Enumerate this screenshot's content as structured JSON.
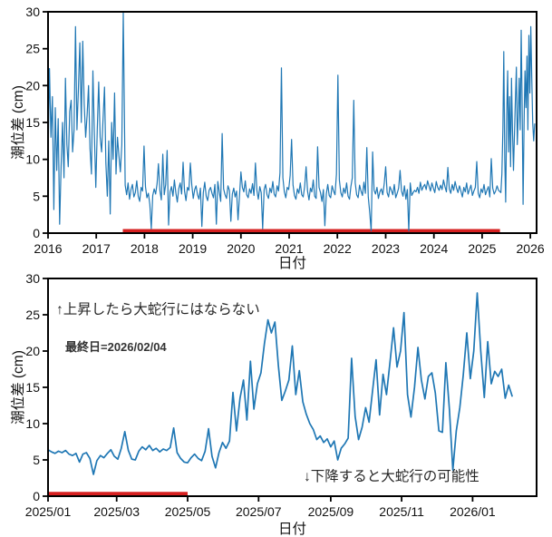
{
  "figure_title": "",
  "colors": {
    "line": "#1f77b4",
    "highlight_bar": "#d62020",
    "axis": "#000000",
    "tick_text": "#111111",
    "annotation_text": "#262626",
    "lastday_text": "#333333",
    "background": "#ffffff"
  },
  "chart_data": [
    {
      "type": "line",
      "title": "",
      "xlabel": "日付",
      "ylabel": "潮位差 (cm)",
      "x_encoding": "decimal year",
      "xlim": [
        2016.0,
        2026.13
      ],
      "ylim": [
        0,
        30
      ],
      "grid": false,
      "legend": "none",
      "frame_color": "#000000",
      "line_color": "#1f77b4",
      "line_width": 1.2,
      "xticks": {
        "values": [
          2016,
          2017,
          2018,
          2019,
          2020,
          2021,
          2022,
          2023,
          2024,
          2025,
          2026
        ],
        "labels": [
          "2016",
          "2017",
          "2018",
          "2019",
          "2020",
          "2021",
          "2022",
          "2023",
          "2024",
          "2025",
          "2026"
        ]
      },
      "yticks": {
        "values": [
          0,
          5,
          10,
          15,
          20,
          25,
          30
        ],
        "labels": [
          "0",
          "5",
          "10",
          "15",
          "20",
          "25",
          "30"
        ]
      },
      "highlight_bar": {
        "x0": 2017.55,
        "x1": 2025.37,
        "y": 0.28,
        "thickness": 4.5
      },
      "series": {
        "name": "潮位差",
        "segments": [
          {
            "x_start": 2016.0,
            "x_step": 0.03,
            "values": [
              10.3,
              22.3,
              13.0,
              18.5,
              3.2,
              17.0,
              8.5,
              15.5,
              1.2,
              9.0,
              15.0,
              7.5,
              21.0,
              12.0,
              9.0,
              16.5,
              18.0,
              11.0,
              14.0,
              28.0,
              14.0,
              19.5,
              25.8,
              15.0,
              26.0,
              17.5,
              13.0,
              16.0,
              20.0,
              11.5,
              8.0,
              22.0,
              13.5,
              6.2,
              14.0,
              20.5,
              13.0,
              11.0,
              15.5,
              19.8,
              9.5,
              5.0,
              12.5,
              2.6,
              15.0,
              10.0,
              19.0,
              8.0,
              13.0,
              10.5,
              8.3,
              12.0,
              29.9
            ]
          },
          {
            "x_start": 2017.6,
            "x_step": 0.03,
            "values": [
              6.5,
              5.2,
              6.8,
              4.6,
              5.9,
              6.6,
              4.9,
              5.5,
              7.1,
              5.0,
              4.3,
              6.2,
              5.7,
              11.8,
              6.3,
              4.8,
              5.4,
              3.9,
              0.6,
              5.1,
              6.0,
              5.3,
              6.7,
              9.4,
              5.8,
              4.5,
              10.7,
              5.2,
              6.6,
              11.2,
              1.1,
              5.6,
              6.3,
              5.0,
              7.2,
              5.5,
              4.2,
              6.0,
              6.8,
              5.3,
              9.6,
              5.7,
              4.4,
              6.2,
              5.8,
              9.5,
              6.5,
              4.7,
              5.9,
              6.4,
              5.2,
              4.6,
              6.1,
              0.9,
              5.5,
              6.9,
              5.0,
              4.4,
              5.8,
              6.2,
              5.4,
              4.8,
              6.6,
              1.2,
              7.0,
              5.6,
              4.3,
              13.5,
              6.0,
              5.2,
              4.7,
              6.4,
              5.8,
              1.6,
              5.3,
              6.1,
              4.9,
              5.7,
              1.8,
              5.0,
              8.3,
              6.2,
              5.6,
              7.1,
              5.2,
              4.8,
              6.0,
              5.4,
              6.7,
              5.1,
              9.5,
              5.8,
              4.6,
              6.3,
              5.5,
              0.6,
              5.9,
              6.6,
              5.2,
              4.7,
              6.1,
              5.5,
              7.0,
              5.3,
              4.9,
              6.4,
              5.7,
              8.2,
              22.4,
              7.5,
              5.6,
              4.8,
              6.2,
              5.9,
              7.8,
              12.7,
              6.5,
              5.1,
              4.6,
              6.0,
              5.4,
              6.8,
              5.2,
              4.9,
              6.3,
              9.0,
              5.7,
              4.5,
              6.1,
              5.6,
              7.2,
              5.0,
              4.7,
              11.7,
              6.2,
              5.5,
              4.3,
              5.9,
              1.0,
              5.3,
              6.6,
              5.1,
              4.8,
              6.4,
              5.7,
              5.2,
              8.0,
              21.4,
              7.2,
              5.5,
              4.9,
              6.1,
              5.4,
              6.8,
              5.0,
              4.6,
              6.3,
              7.5,
              18.0,
              6.8,
              5.2,
              4.8,
              6.5,
              5.7,
              5.1,
              6.9,
              5.4,
              11.6,
              4.9,
              2.8,
              0.3,
              11.0,
              5.8,
              5.3,
              6.2,
              4.7,
              5.6,
              6.0,
              5.2,
              6.7,
              9.0,
              5.5,
              4.9,
              6.3,
              5.8,
              5.2,
              6.6,
              4.8,
              5.4,
              6.1,
              8.5,
              5.7,
              5.0,
              6.4,
              4.6,
              5.9,
              0.3,
              6.8,
              5.1,
              5.5,
              5.8,
              5.6,
              6.2,
              5.4,
              6.9,
              5.8,
              6.3,
              6.6,
              5.9,
              7.1,
              6.4,
              5.7,
              6.8,
              6.1,
              5.5,
              7.0,
              6.2,
              5.8,
              6.5,
              5.9,
              7.2,
              6.3,
              5.6,
              8.9,
              6.0,
              5.4,
              6.6,
              5.8,
              7.0,
              6.1,
              5.5,
              6.4,
              5.7,
              4.9,
              6.2,
              5.6,
              6.8,
              5.3,
              5.9,
              6.5,
              5.1,
              5.7,
              6.2,
              9.7,
              5.4,
              4.8,
              6.0,
              5.5,
              6.6,
              5.2,
              5.8,
              6.3,
              4.9,
              10.1,
              6.1,
              5.3,
              5.7,
              6.4,
              5.8
            ]
          },
          {
            "x_start": 2025.39,
            "x_step": 0.02,
            "values": [
              5.5,
              8.0,
              14.0,
              24.6,
              10.0,
              4.2,
              16.0,
              22.0,
              11.0,
              18.5,
              9.0,
              21.0,
              14.0,
              8.5,
              13.0,
              18.0,
              22.5,
              12.0,
              16.0,
              21.0,
              14.0,
              27.5,
              18.0,
              3.9,
              15.0,
              22.0,
              17.0,
              24.0,
              14.0,
              26.8,
              19.0,
              28.0,
              21.0,
              15.0,
              12.5,
              14.8
            ]
          }
        ]
      },
      "annotations": []
    },
    {
      "type": "line",
      "title": "",
      "xlabel": "日付",
      "ylabel": "潮位差 (cm)",
      "x_encoding": "days since 2025/01/01",
      "xlim": [
        0,
        420
      ],
      "ylim": [
        0,
        30
      ],
      "grid": false,
      "legend": "none",
      "frame_color": "#000000",
      "line_color": "#1f77b4",
      "line_width": 1.7,
      "xticks": {
        "values": [
          0,
          59,
          120,
          181,
          243,
          304,
          365
        ],
        "labels": [
          "2025/01",
          "2025/03",
          "2025/05",
          "2025/07",
          "2025/09",
          "2025/11",
          "2026/01"
        ]
      },
      "yticks": {
        "values": [
          0,
          5,
          10,
          15,
          20,
          25,
          30
        ],
        "labels": [
          "0",
          "5",
          "10",
          "15",
          "20",
          "25",
          "30"
        ]
      },
      "highlight_bar": {
        "x0": 0,
        "x1": 120,
        "y": 0.28,
        "thickness": 5
      },
      "series": {
        "name": "潮位差",
        "segments": [
          {
            "x_start": 0,
            "x_step": 3,
            "values": [
              6.4,
              6.1,
              5.9,
              6.2,
              6.0,
              6.3,
              5.8,
              5.6,
              5.9,
              4.7,
              5.8,
              6.0,
              5.2,
              3.0,
              4.9,
              5.6,
              5.3,
              5.9,
              6.4,
              5.5,
              5.1,
              6.6,
              8.9,
              6.3,
              5.1,
              5.0,
              6.2,
              6.8,
              6.4,
              7.0,
              6.3,
              6.6,
              6.1,
              6.5,
              6.3,
              6.7,
              9.4,
              6.0,
              5.2,
              4.7,
              4.6,
              5.3,
              5.8,
              5.2,
              4.9,
              6.2,
              9.3,
              5.5,
              3.9,
              6.0,
              7.4,
              6.6,
              7.6,
              14.3,
              9.0,
              13.5,
              16.0,
              10.5,
              18.6,
              12.0,
              15.5,
              17.0,
              21.0,
              24.3,
              22.5,
              24.0,
              18.0,
              13.2,
              14.5,
              16.0,
              20.7,
              14.0,
              17.3,
              13.0,
              11.3,
              10.0,
              9.2,
              7.8,
              8.3,
              7.4,
              7.9,
              6.8,
              7.6,
              5.0,
              6.6,
              7.2,
              8.0,
              19.0,
              11.0,
              7.8,
              9.5,
              12.2,
              10.2,
              14.6,
              18.8,
              11.2,
              16.8,
              14.0,
              18.5,
              23.2,
              17.8,
              20.0,
              25.3,
              14.0,
              10.9,
              15.0,
              20.5,
              16.0,
              13.4,
              16.5,
              17.0,
              14.2,
              9.0,
              8.8,
              18.4,
              12.0,
              3.6,
              9.0,
              12.2,
              16.7,
              22.5,
              16.2,
              20.0,
              28.0,
              20.0,
              13.6,
              21.3,
              15.5,
              17.2,
              16.5,
              17.5,
              13.5,
              15.3,
              13.8
            ]
          }
        ]
      },
      "annotations": [
        {
          "text": "↑上昇したら大蛇行にはならない",
          "x": 8,
          "y": 26.0
        },
        {
          "text": "最終日=2026/02/04",
          "x": 15,
          "y": 20.5
        },
        {
          "text": "↓下降すると大蛇行の可能性",
          "x": 220,
          "y": 2.3
        }
      ]
    }
  ]
}
